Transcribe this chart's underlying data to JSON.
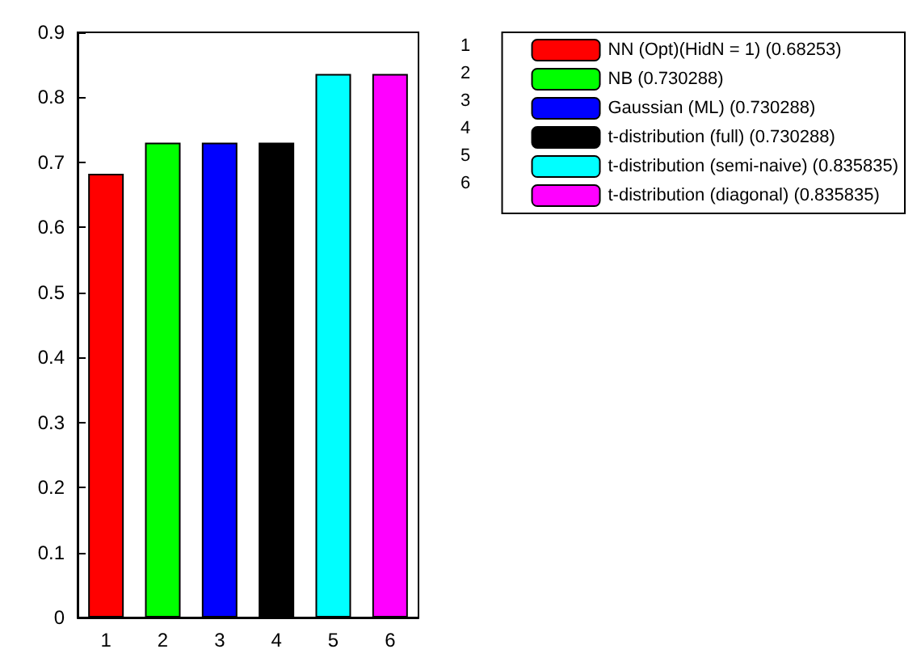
{
  "chart_data": {
    "type": "bar",
    "categories": [
      "1",
      "2",
      "3",
      "4",
      "5",
      "6"
    ],
    "series": [
      {
        "name": "NN (Opt)(HidN = 1) (0.68253)",
        "color": "#ff0000",
        "values": [
          0.68253,
          null,
          null,
          null,
          null,
          null
        ]
      },
      {
        "name": "NB (0.730288)",
        "color": "#00ff00",
        "values": [
          null,
          0.730288,
          null,
          null,
          null,
          null
        ]
      },
      {
        "name": "Gaussian (ML) (0.730288)",
        "color": "#0000ff",
        "values": [
          null,
          null,
          0.730288,
          null,
          null,
          null
        ]
      },
      {
        "name": "t-distribution (full) (0.730288)",
        "color": "#000000",
        "values": [
          null,
          null,
          null,
          0.730288,
          null,
          null
        ]
      },
      {
        "name": "t-distribution (semi-naive) (0.835835)",
        "color": "#00ffff",
        "values": [
          null,
          null,
          null,
          null,
          0.835835,
          null
        ]
      },
      {
        "name": "t-distribution (diagonal) (0.835835)",
        "color": "#ff00ff",
        "values": [
          null,
          null,
          null,
          null,
          null,
          0.835835
        ]
      }
    ],
    "ylim": [
      0,
      0.9
    ],
    "yticks": [
      0,
      0.1,
      0.2,
      0.3,
      0.4,
      0.5,
      0.6,
      0.7,
      0.8,
      0.9
    ],
    "grid": false,
    "legend": "top right"
  }
}
